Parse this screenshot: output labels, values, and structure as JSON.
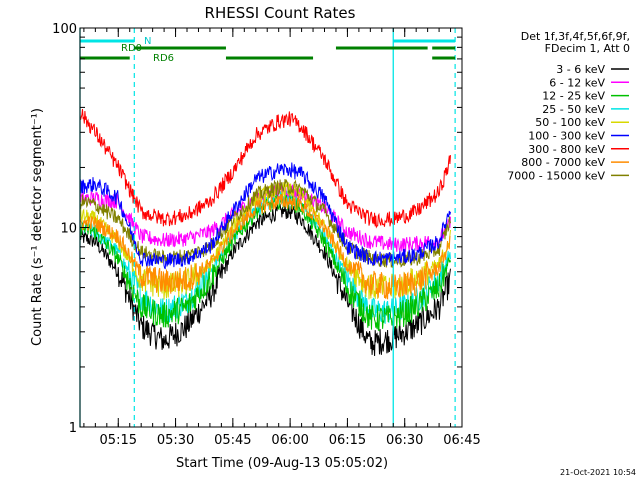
{
  "chart_data": {
    "type": "line",
    "title": "RHESSI Count Rates",
    "xlabel": "Start Time (09-Aug-13 05:05:02)",
    "ylabel": "Count Rate (s⁻¹ detector segment⁻¹)",
    "y_scale": "log",
    "ylim": [
      1,
      100
    ],
    "y_ticks": [
      "1",
      "10",
      "100"
    ],
    "x_range_minutes": [
      5.083,
      6.75
    ],
    "x_tick_labels": [
      "05:15",
      "05:30",
      "05:45",
      "06:00",
      "06:15",
      "06:30",
      "06:45"
    ],
    "x_tick_values": [
      5.25,
      5.5,
      5.75,
      6.0,
      6.25,
      6.5,
      6.75
    ],
    "legend_header": [
      "Det 1f,3f,4f,5f,6f,9f,",
      "FDecim 1, Att 0"
    ],
    "legend_placement": "right",
    "series": [
      {
        "name": "3 - 6 keV",
        "color": "#000000",
        "x": [
          5.083,
          5.15,
          5.25,
          5.35,
          5.45,
          5.55,
          5.65,
          5.75,
          5.85,
          5.95,
          6.0,
          6.05,
          6.15,
          6.25,
          6.35,
          6.45,
          6.55,
          6.65,
          6.7
        ],
        "y": [
          9.0,
          8.5,
          6.0,
          3.2,
          2.7,
          3.2,
          4.5,
          7.5,
          10.5,
          12.0,
          12.0,
          11.0,
          7.5,
          4.2,
          2.6,
          2.8,
          3.2,
          4.0,
          5.5
        ]
      },
      {
        "name": "6 - 12 keV",
        "color": "#ff00ff",
        "x": [
          5.083,
          5.15,
          5.25,
          5.35,
          5.45,
          5.55,
          5.65,
          5.75,
          5.85,
          5.95,
          6.0,
          6.05,
          6.15,
          6.25,
          6.35,
          6.45,
          6.55,
          6.65,
          6.7
        ],
        "y": [
          14.0,
          14.0,
          13.5,
          9.0,
          8.6,
          8.8,
          9.5,
          11.5,
          14.0,
          15.5,
          15.5,
          14.5,
          12.5,
          9.5,
          8.5,
          8.2,
          8.3,
          8.7,
          10.5
        ]
      },
      {
        "name": "12 - 25 keV",
        "color": "#00c000",
        "x": [
          5.083,
          5.15,
          5.25,
          5.35,
          5.45,
          5.55,
          5.65,
          5.75,
          5.85,
          5.95,
          6.0,
          6.05,
          6.15,
          6.25,
          6.35,
          6.45,
          6.55,
          6.65,
          6.7
        ],
        "y": [
          10.0,
          9.5,
          7.0,
          4.0,
          3.6,
          4.0,
          5.5,
          8.5,
          12.0,
          13.5,
          13.5,
          12.5,
          8.5,
          5.0,
          3.5,
          3.5,
          4.0,
          5.0,
          7.0
        ]
      },
      {
        "name": "25 - 50 keV",
        "color": "#00e5e5",
        "x": [
          5.083,
          5.15,
          5.25,
          5.35,
          5.45,
          5.55,
          5.65,
          5.75,
          5.85,
          5.95,
          6.0,
          6.05,
          6.15,
          6.25,
          6.35,
          6.45,
          6.55,
          6.65,
          6.7
        ],
        "y": [
          10.0,
          9.5,
          7.5,
          4.5,
          3.8,
          4.3,
          6.0,
          9.0,
          12.5,
          14.0,
          14.0,
          13.0,
          9.0,
          5.5,
          3.8,
          3.8,
          4.3,
          5.5,
          7.5
        ]
      },
      {
        "name": "50 - 100 keV",
        "color": "#d8d800",
        "x": [
          5.083,
          5.15,
          5.25,
          5.35,
          5.45,
          5.55,
          5.65,
          5.75,
          5.85,
          5.95,
          6.0,
          6.05,
          6.15,
          6.25,
          6.35,
          6.45,
          6.55,
          6.65,
          6.7
        ],
        "y": [
          11.5,
          11.0,
          8.5,
          5.5,
          5.0,
          5.3,
          6.5,
          10.0,
          14.0,
          15.5,
          15.5,
          14.5,
          10.0,
          6.5,
          5.0,
          5.0,
          5.5,
          6.5,
          9.0
        ]
      },
      {
        "name": "100 - 300 keV",
        "color": "#0000ff",
        "x": [
          5.083,
          5.15,
          5.25,
          5.35,
          5.45,
          5.55,
          5.65,
          5.75,
          5.85,
          5.95,
          6.0,
          6.05,
          6.15,
          6.25,
          6.35,
          6.45,
          6.55,
          6.65,
          6.7
        ],
        "y": [
          16.0,
          16.5,
          14.0,
          7.0,
          6.8,
          7.0,
          8.0,
          12.0,
          17.5,
          19.5,
          19.5,
          18.5,
          14.0,
          8.0,
          7.0,
          7.0,
          7.3,
          8.5,
          12.5
        ]
      },
      {
        "name": "300 - 800 keV",
        "color": "#ff0000",
        "x": [
          5.083,
          5.15,
          5.25,
          5.35,
          5.45,
          5.55,
          5.65,
          5.75,
          5.85,
          5.95,
          6.0,
          6.05,
          6.15,
          6.25,
          6.35,
          6.45,
          6.55,
          6.65,
          6.7
        ],
        "y": [
          38.0,
          30.0,
          20.0,
          12.0,
          11.0,
          11.5,
          13.5,
          19.0,
          29.0,
          34.0,
          35.0,
          32.0,
          22.0,
          13.0,
          11.0,
          11.0,
          12.0,
          15.0,
          22.0
        ]
      },
      {
        "name": "800 - 7000 keV",
        "color": "#ff8c00",
        "x": [
          5.083,
          5.15,
          5.25,
          5.35,
          5.45,
          5.55,
          5.65,
          5.75,
          5.85,
          5.95,
          6.0,
          6.05,
          6.15,
          6.25,
          6.35,
          6.45,
          6.55,
          6.65,
          6.7
        ],
        "y": [
          10.5,
          10.5,
          9.0,
          5.8,
          5.3,
          5.5,
          6.5,
          9.5,
          12.5,
          13.5,
          13.5,
          13.0,
          10.0,
          6.5,
          5.2,
          5.0,
          5.3,
          6.3,
          8.5
        ]
      },
      {
        "name": "7000 - 15000 keV",
        "color": "#808000",
        "x": [
          5.083,
          5.15,
          5.25,
          5.35,
          5.45,
          5.55,
          5.65,
          5.75,
          5.85,
          5.95,
          6.0,
          6.05,
          6.15,
          6.25,
          6.35,
          6.45,
          6.55,
          6.65,
          6.7
        ],
        "y": [
          13.5,
          13.0,
          11.0,
          7.5,
          7.0,
          7.2,
          8.0,
          11.0,
          14.5,
          16.0,
          16.0,
          15.5,
          12.0,
          8.0,
          7.0,
          6.8,
          7.0,
          7.8,
          11.0
        ]
      }
    ],
    "annotations": {
      "cyan_solid_lines_x": [
        5.083,
        6.45
      ],
      "cyan_dashed_lines_x": [
        5.32,
        6.72
      ],
      "night_label": "N",
      "night_bars": [
        [
          5.083,
          5.32
        ],
        [
          6.45,
          6.72
        ]
      ],
      "rd0_label": "RD0",
      "rd6_label": "RD6",
      "green_upper_bars": [
        [
          5.32,
          5.72
        ],
        [
          6.2,
          6.6
        ],
        [
          6.62,
          6.72
        ]
      ],
      "green_lower_bars": [
        [
          5.083,
          5.3
        ],
        [
          5.72,
          6.1
        ],
        [
          6.62,
          6.72
        ]
      ]
    }
  },
  "footer_timestamp": "21-Oct-2021 10:54"
}
